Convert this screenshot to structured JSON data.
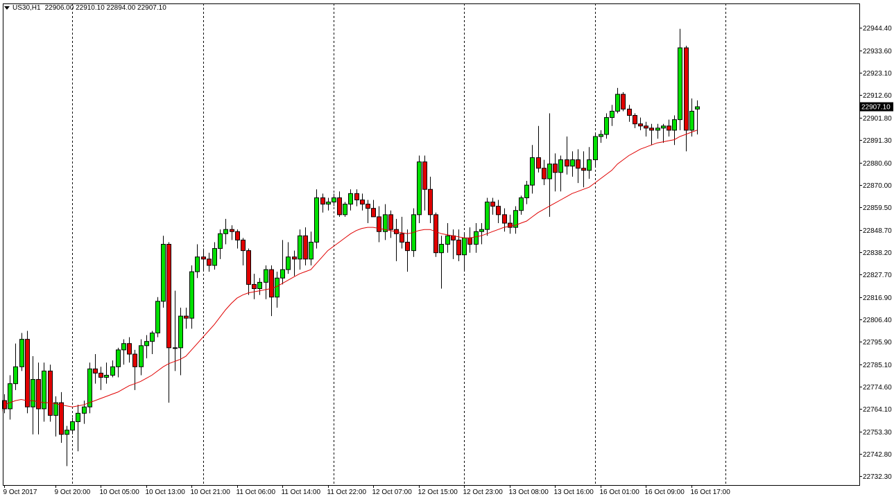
{
  "header": {
    "symbol": "US30,H1",
    "ohlc": "22906.00 22910.10 22894.00 22907.10"
  },
  "colors": {
    "background": "#ffffff",
    "bull": "#00e000",
    "bear": "#e00000",
    "ma": "#e00000",
    "separator": "#000000",
    "price_tag_bg": "#000000",
    "price_tag_text": "#ffffff"
  },
  "chart_data": {
    "type": "candlestick",
    "symbol": "US30",
    "timeframe": "H1",
    "ylim": [
      22728,
      22956
    ],
    "y_ticks": [
      "22944.40",
      "22933.60",
      "22923.10",
      "22912.60",
      "22901.80",
      "22891.30",
      "22880.60",
      "22870.00",
      "22859.50",
      "22848.70",
      "22838.20",
      "22827.70",
      "22816.90",
      "22806.40",
      "22795.90",
      "22785.10",
      "22774.60",
      "22764.10",
      "22753.30",
      "22742.80",
      "22732.30"
    ],
    "current_price": "22907.10",
    "x_labels": [
      "9 Oct 2017",
      "9 Oct 20:00",
      "10 Oct 05:00",
      "10 Oct 13:00",
      "10 Oct 21:00",
      "11 Oct 06:00",
      "11 Oct 14:00",
      "11 Oct 22:00",
      "12 Oct 07:00",
      "12 Oct 15:00",
      "12 Oct 23:00",
      "13 Oct 08:00",
      "13 Oct 16:00",
      "16 Oct 01:00",
      "16 Oct 09:00",
      "16 Oct 17:00"
    ],
    "x_label_bar_index": [
      0,
      9,
      17,
      25,
      33,
      41,
      49,
      57,
      65,
      73,
      81,
      89,
      97,
      105,
      113,
      121
    ],
    "session_separator_bar_index": [
      12,
      35,
      58,
      81,
      104,
      127
    ],
    "candles": [
      [
        22768.0,
        22771.0,
        22762.0,
        22764.1
      ],
      [
        22764.1,
        22780.0,
        22759.0,
        22776.0
      ],
      [
        22776.0,
        22795.0,
        22773.0,
        22784.0
      ],
      [
        22784.0,
        22800.0,
        22782.0,
        22797.0
      ],
      [
        22797.0,
        22801.0,
        22762.0,
        22765.0
      ],
      [
        22765.0,
        22789.0,
        22752.0,
        22778.0
      ],
      [
        22778.0,
        22786.0,
        22752.0,
        22764.1
      ],
      [
        22764.1,
        22786.0,
        22758.0,
        22782.0
      ],
      [
        22782.0,
        22785.0,
        22758.0,
        22761.0
      ],
      [
        22761.0,
        22770.0,
        22751.0,
        22767.0
      ],
      [
        22767.0,
        22772.0,
        22748.0,
        22752.0
      ],
      [
        22752.0,
        22756.0,
        22737.0,
        22754.0
      ],
      [
        22754.0,
        22760.0,
        22752.0,
        22758.0
      ],
      [
        22758.0,
        22766.0,
        22744.0,
        22762.0
      ],
      [
        22762.0,
        22768.0,
        22757.0,
        22765.0
      ],
      [
        22765.0,
        22786.0,
        22762.0,
        22783.0
      ],
      [
        22783.0,
        22790.0,
        22776.0,
        22781.0
      ],
      [
        22781.0,
        22784.0,
        22773.0,
        22779.0
      ],
      [
        22779.0,
        22786.0,
        22776.0,
        22780.0
      ],
      [
        22780.0,
        22787.0,
        22779.0,
        22784.0
      ],
      [
        22784.0,
        22793.0,
        22779.0,
        22792.0
      ],
      [
        22792.0,
        22797.0,
        22785.0,
        22795.0
      ],
      [
        22795.0,
        22798.0,
        22786.0,
        22790.0
      ],
      [
        22790.0,
        22792.0,
        22773.0,
        22784.0
      ],
      [
        22784.0,
        22797.0,
        22780.0,
        22794.0
      ],
      [
        22794.0,
        22799.0,
        22788.0,
        22796.0
      ],
      [
        22796.0,
        22801.0,
        22790.0,
        22800.0
      ],
      [
        22800.0,
        22817.0,
        22798.0,
        22815.0
      ],
      [
        22815.0,
        22846.0,
        22812.0,
        22842.0
      ],
      [
        22842.0,
        22843.0,
        22767.0,
        22793.0
      ],
      [
        22793.0,
        22820.0,
        22782.0,
        22793.0
      ],
      [
        22793.0,
        22812.0,
        22780.0,
        22808.0
      ],
      [
        22808.0,
        22812.0,
        22802.0,
        22807.0
      ],
      [
        22807.0,
        22832.0,
        22802.0,
        22829.0
      ],
      [
        22829.0,
        22842.0,
        22826.0,
        22836.0
      ],
      [
        22836.0,
        22840.0,
        22830.0,
        22835.0
      ],
      [
        22835.0,
        22838.0,
        22829.0,
        22832.0
      ],
      [
        22832.0,
        22843.0,
        22830.0,
        22840.0
      ],
      [
        22840.0,
        22849.0,
        22835.0,
        22847.0
      ],
      [
        22847.0,
        22854.0,
        22842.0,
        22849.0
      ],
      [
        22849.0,
        22851.0,
        22844.0,
        22848.0
      ],
      [
        22848.0,
        22849.0,
        22840.0,
        22844.0
      ],
      [
        22844.0,
        22845.0,
        22832.0,
        22839.0
      ],
      [
        22839.0,
        22840.0,
        22818.0,
        22823.0
      ],
      [
        22823.0,
        22828.0,
        22816.0,
        22821.0
      ],
      [
        22821.0,
        22826.0,
        22818.0,
        22824.0
      ],
      [
        22824.0,
        22832.0,
        22816.0,
        22830.0
      ],
      [
        22830.0,
        22832.0,
        22808.0,
        22817.0
      ],
      [
        22817.0,
        22829.0,
        22812.0,
        22826.0
      ],
      [
        22826.0,
        22844.0,
        22823.0,
        22830.0
      ],
      [
        22830.0,
        22843.0,
        22828.0,
        22836.0
      ],
      [
        22836.0,
        22839.0,
        22827.0,
        22835.0
      ],
      [
        22835.0,
        22849.0,
        22830.0,
        22846.0
      ],
      [
        22846.0,
        22850.0,
        22832.0,
        22835.0
      ],
      [
        22835.0,
        22848.0,
        22832.0,
        22843.0
      ],
      [
        22843.0,
        22868.0,
        22840.0,
        22864.0
      ],
      [
        22864.0,
        22866.0,
        22857.0,
        22861.0
      ],
      [
        22861.0,
        22864.0,
        22858.0,
        22862.0
      ],
      [
        22862.0,
        22866.0,
        22860.0,
        22864.0
      ],
      [
        22864.0,
        22867.0,
        22855.0,
        22856.0
      ],
      [
        22856.0,
        22862.0,
        22855.0,
        22861.0
      ],
      [
        22861.0,
        22868.0,
        22858.0,
        22866.0
      ],
      [
        22866.0,
        22868.0,
        22860.0,
        22863.0
      ],
      [
        22863.0,
        22866.0,
        22858.0,
        22861.0
      ],
      [
        22861.0,
        22863.0,
        22852.0,
        22859.0
      ],
      [
        22859.0,
        22863.0,
        22855.0,
        22855.0
      ],
      [
        22855.0,
        22860.0,
        22843.0,
        22848.0
      ],
      [
        22848.0,
        22861.0,
        22844.0,
        22856.0
      ],
      [
        22856.0,
        22858.0,
        22845.0,
        22849.0
      ],
      [
        22849.0,
        22854.0,
        22834.0,
        22847.0
      ],
      [
        22847.0,
        22855.0,
        22840.0,
        22843.0
      ],
      [
        22843.0,
        22849.0,
        22829.0,
        22839.0
      ],
      [
        22839.0,
        22859.0,
        22836.0,
        22856.0
      ],
      [
        22856.0,
        22884.0,
        22852.0,
        22881.0
      ],
      [
        22881.0,
        22884.0,
        22858.0,
        22868.0
      ],
      [
        22868.0,
        22874.0,
        22852.0,
        22856.0
      ],
      [
        22856.0,
        22857.0,
        22836.0,
        22838.0
      ],
      [
        22838.0,
        22846.0,
        22821.0,
        22842.0
      ],
      [
        22842.0,
        22852.0,
        22838.0,
        22846.0
      ],
      [
        22846.0,
        22849.0,
        22835.0,
        22844.0
      ],
      [
        22844.0,
        22849.0,
        22834.0,
        22837.0
      ],
      [
        22837.0,
        22847.0,
        22830.0,
        22845.0
      ],
      [
        22845.0,
        22850.0,
        22838.0,
        22842.0
      ],
      [
        22842.0,
        22852.0,
        22838.0,
        22848.0
      ],
      [
        22848.0,
        22852.0,
        22842.0,
        22849.0
      ],
      [
        22849.0,
        22864.0,
        22846.0,
        22862.0
      ],
      [
        22862.0,
        22864.0,
        22856.0,
        22860.0
      ],
      [
        22860.0,
        22863.0,
        22852.0,
        22856.0
      ],
      [
        22856.0,
        22859.0,
        22848.0,
        22852.0
      ],
      [
        22852.0,
        22856.0,
        22847.0,
        22850.0
      ],
      [
        22850.0,
        22860.0,
        22847.0,
        22858.0
      ],
      [
        22858.0,
        22865.0,
        22856.0,
        22864.0
      ],
      [
        22864.0,
        22872.0,
        22861.0,
        22870.0
      ],
      [
        22870.0,
        22889.0,
        22866.0,
        22883.0
      ],
      [
        22883.0,
        22898.0,
        22876.0,
        22878.0
      ],
      [
        22878.0,
        22882.0,
        22870.0,
        22873.0
      ],
      [
        22873.0,
        22904.0,
        22855.0,
        22880.0
      ],
      [
        22880.0,
        22885.0,
        22867.0,
        22876.0
      ],
      [
        22876.0,
        22884.0,
        22867.0,
        22882.0
      ],
      [
        22882.0,
        22893.0,
        22875.0,
        22879.0
      ],
      [
        22879.0,
        22886.0,
        22874.0,
        22882.0
      ],
      [
        22882.0,
        22887.0,
        22871.0,
        22878.0
      ],
      [
        22878.0,
        22886.0,
        22869.0,
        22877.0
      ],
      [
        22877.0,
        22888.0,
        22873.0,
        22882.0
      ],
      [
        22882.0,
        22895.0,
        22879.0,
        22893.0
      ],
      [
        22893.0,
        22896.0,
        22890.0,
        22894.0
      ],
      [
        22894.0,
        22904.0,
        22892.0,
        22902.0
      ],
      [
        22902.0,
        22908.0,
        22898.0,
        22905.0
      ],
      [
        22905.0,
        22916.0,
        22904.0,
        22913.0
      ],
      [
        22913.0,
        22914.0,
        22905.0,
        22906.0
      ],
      [
        22906.0,
        22908.0,
        22900.0,
        22903.0
      ],
      [
        22903.0,
        22904.0,
        22897.0,
        22899.0
      ],
      [
        22899.0,
        22902.0,
        22896.0,
        22898.0
      ],
      [
        22898.0,
        22900.0,
        22893.0,
        22897.0
      ],
      [
        22897.0,
        22899.0,
        22889.0,
        22896.0
      ],
      [
        22896.0,
        22899.0,
        22892.0,
        22897.0
      ],
      [
        22897.0,
        22899.0,
        22890.0,
        22898.0
      ],
      [
        22898.0,
        22901.0,
        22893.0,
        22896.0
      ],
      [
        22896.0,
        22903.0,
        22889.0,
        22901.0
      ],
      [
        22901.0,
        22944.0,
        22896.0,
        22935.0
      ],
      [
        22935.0,
        22936.0,
        22886.0,
        22896.0
      ],
      [
        22896.0,
        22911.0,
        22893.0,
        22905.0
      ],
      [
        22906.0,
        22910.1,
        22894.0,
        22907.1
      ]
    ],
    "ma": [
      22766.0,
      22767.0,
      22768.0,
      22768.5,
      22768.0,
      22768.0,
      22767.5,
      22767.0,
      22767.0,
      22766.5,
      22766.0,
      22765.5,
      22765.0,
      22765.5,
      22766.0,
      22767.0,
      22768.0,
      22769.0,
      22770.0,
      22771.0,
      22772.0,
      22773.5,
      22775.0,
      22776.0,
      22777.0,
      22778.5,
      22780.0,
      22782.0,
      22784.0,
      22785.5,
      22786.5,
      22787.5,
      22789.0,
      22792.0,
      22795.0,
      22798.0,
      22801.0,
      22804.0,
      22807.5,
      22811.0,
      22814.0,
      22816.5,
      22818.0,
      22819.0,
      22819.5,
      22820.0,
      22820.5,
      22821.0,
      22822.0,
      22823.5,
      22825.0,
      22826.5,
      22828.0,
      22829.0,
      22830.0,
      22833.0,
      22836.0,
      22839.0,
      22841.0,
      22843.0,
      22845.0,
      22847.0,
      22848.5,
      22849.5,
      22850.0,
      22850.0,
      22849.5,
      22849.0,
      22848.5,
      22848.0,
      22847.5,
      22847.0,
      22847.5,
      22848.5,
      22849.0,
      22849.0,
      22848.0,
      22847.0,
      22846.5,
      22846.0,
      22845.5,
      22845.0,
      22845.0,
      22845.5,
      22846.0,
      22847.0,
      22848.0,
      22849.0,
      22850.0,
      22850.5,
      22851.0,
      22852.0,
      22853.0,
      22855.0,
      22857.0,
      22858.5,
      22860.0,
      22861.5,
      22863.0,
      22864.5,
      22866.0,
      22867.0,
      22868.0,
      22869.0,
      22871.0,
      22873.0,
      22875.0,
      22877.0,
      22880.0,
      22882.0,
      22884.0,
      22885.5,
      22887.0,
      22888.0,
      22889.0,
      22890.0,
      22890.5,
      22891.0,
      22891.5,
      22893.0,
      22894.0,
      22895.0,
      22896.0
    ]
  }
}
